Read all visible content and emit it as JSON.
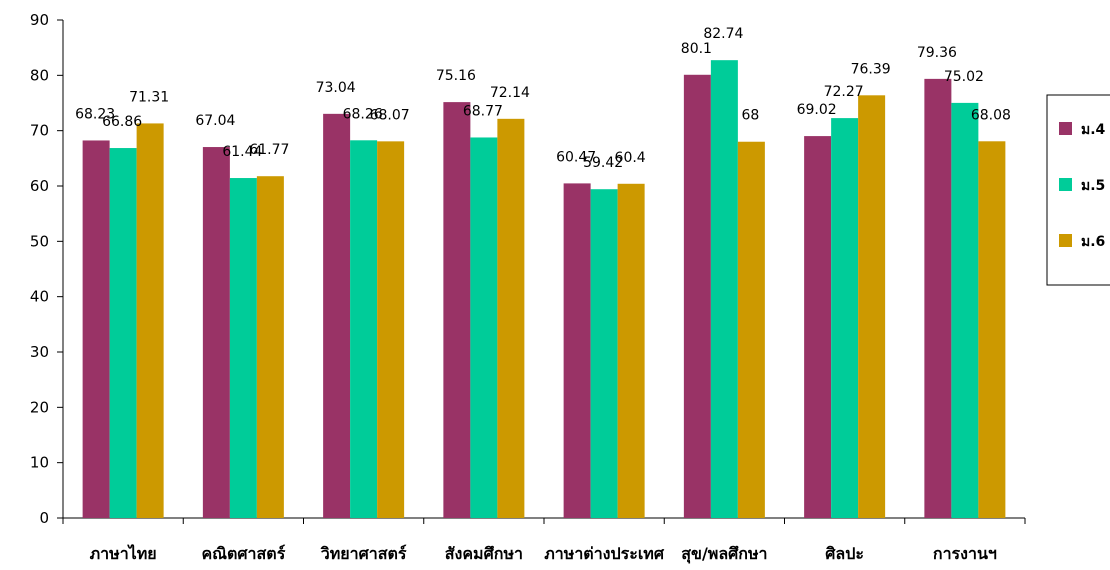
{
  "chart_data": {
    "type": "bar",
    "title": "",
    "xlabel": "",
    "ylabel": "",
    "ylim": [
      0,
      90
    ],
    "yticks": [
      0,
      10,
      20,
      30,
      40,
      50,
      60,
      70,
      80,
      90
    ],
    "legend_position": "right",
    "grid": false,
    "categories": [
      "ภาษาไทย",
      "คณิตศาสตร์",
      "วิทยาศาสตร์",
      "สังคมศึกษา",
      "ภาษาต่างประเทศ",
      "สุข/พลศึกษา",
      "ศิลปะ",
      "การงานฯ"
    ],
    "series": [
      {
        "name": "ม.4",
        "color": "#993366",
        "values": [
          68.23,
          67.04,
          73.04,
          75.16,
          60.47,
          80.1,
          69.02,
          79.36
        ]
      },
      {
        "name": "ม.5",
        "color": "#00CC99",
        "values": [
          66.86,
          61.44,
          68.26,
          68.77,
          59.42,
          82.74,
          72.27,
          75.02
        ]
      },
      {
        "name": "ม.6",
        "color": "#CC9900",
        "values": [
          71.31,
          61.77,
          68.07,
          72.14,
          60.4,
          68,
          76.39,
          68.08
        ]
      }
    ]
  }
}
